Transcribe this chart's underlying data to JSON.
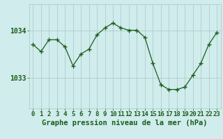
{
  "x": [
    0,
    1,
    2,
    3,
    4,
    5,
    6,
    7,
    8,
    9,
    10,
    11,
    12,
    13,
    14,
    15,
    16,
    17,
    18,
    19,
    20,
    21,
    22,
    23
  ],
  "y": [
    1033.7,
    1033.55,
    1033.8,
    1033.8,
    1033.65,
    1033.25,
    1033.5,
    1033.6,
    1033.9,
    1034.05,
    1034.15,
    1034.05,
    1034.0,
    1034.0,
    1033.85,
    1033.3,
    1032.85,
    1032.75,
    1032.75,
    1032.8,
    1033.05,
    1033.3,
    1033.7,
    1033.95
  ],
  "line_color": "#1a5c1a",
  "marker_color": "#1a5c1a",
  "bg_color": "#d0ecec",
  "grid_color": "#a8c8c8",
  "title": "Graphe pression niveau de la mer (hPa)",
  "title_color": "#1a5c1a",
  "ytick_labels": [
    "1033",
    "1034"
  ],
  "ytick_values": [
    1033.0,
    1034.0
  ],
  "ylim": [
    1032.35,
    1034.55
  ],
  "xlim": [
    -0.5,
    23.5
  ],
  "title_fontsize": 7.5,
  "tick_fontsize": 6.5
}
